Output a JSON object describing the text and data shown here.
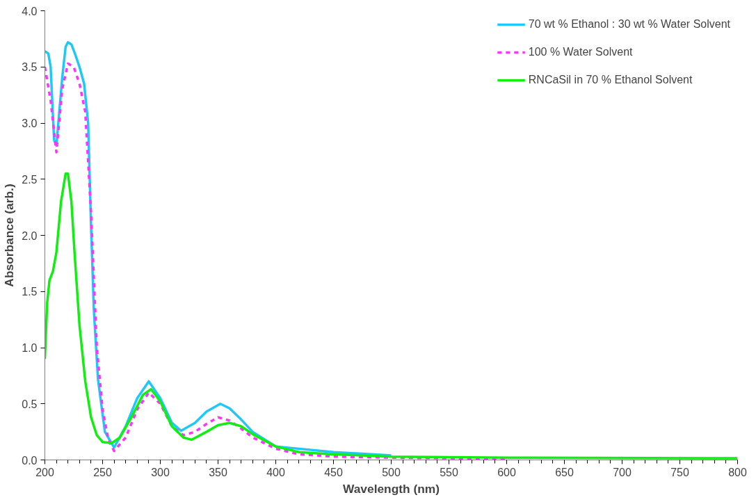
{
  "chart_data": {
    "type": "line",
    "xlabel": "Wavelength (nm)",
    "ylabel": "Absorbance (arb.)",
    "xlim": [
      200,
      800
    ],
    "ylim": [
      0,
      4
    ],
    "xticks": [
      200,
      250,
      300,
      350,
      400,
      450,
      500,
      550,
      600,
      650,
      700,
      750,
      800
    ],
    "yticks": [
      {
        "value": 0,
        "label": "0.0"
      },
      {
        "value": 0.5,
        "label": "0.5"
      },
      {
        "value": 1,
        "label": "1.0"
      },
      {
        "value": 1.5,
        "label": "1.5"
      },
      {
        "value": 2,
        "label": "2.0"
      },
      {
        "value": 2.5,
        "label": "2.5"
      },
      {
        "value": 3,
        "label": "3.0"
      },
      {
        "value": 3.5,
        "label": "3.5"
      },
      {
        "value": 4,
        "label": "4.0"
      }
    ],
    "grid": false,
    "legend": "top right",
    "marker": "none",
    "series": [
      {
        "name": "70 wt % Ethanol : 30 wt % Water Solvent",
        "color": "#1fc8f8",
        "line_style": "solid",
        "x": [
          200,
          203,
          205,
          208,
          210,
          215,
          218,
          220,
          223,
          226,
          230,
          234,
          237.5,
          240,
          242.4,
          246,
          252,
          260,
          270,
          280,
          290,
          300,
          310,
          318,
          330,
          340,
          352,
          360,
          370,
          380,
          400,
          450,
          500
        ],
        "values": [
          3.64,
          3.62,
          3.5,
          2.85,
          2.8,
          3.4,
          3.68,
          3.72,
          3.7,
          3.62,
          3.5,
          3.35,
          3.0,
          2.09,
          1.34,
          0.72,
          0.25,
          0.11,
          0.3,
          0.55,
          0.7,
          0.55,
          0.33,
          0.26,
          0.33,
          0.43,
          0.5,
          0.46,
          0.36,
          0.25,
          0.12,
          0.07,
          0.04
        ]
      },
      {
        "name": "100 % Water Solvent",
        "color": "#ff33ff",
        "line_style": "dashed",
        "x": [
          200,
          205,
          210,
          215,
          220,
          225,
          230,
          235,
          240,
          245,
          250,
          255,
          260,
          270,
          280,
          290,
          300,
          310,
          320,
          330,
          340,
          350,
          360,
          370,
          380,
          400,
          420,
          450,
          500,
          600
        ],
        "values": [
          3.5,
          3.2,
          2.74,
          3.3,
          3.53,
          3.5,
          3.35,
          3.1,
          2.2,
          1.0,
          0.45,
          0.18,
          0.08,
          0.2,
          0.45,
          0.6,
          0.5,
          0.3,
          0.22,
          0.25,
          0.32,
          0.38,
          0.35,
          0.28,
          0.2,
          0.1,
          0.05,
          0.03,
          0.02,
          0.01
        ]
      },
      {
        "name": "RNCaSil in 70 % Ethanol Solvent",
        "color": "#11ee11",
        "line_style": "solid",
        "x": [
          200,
          202,
          204,
          207,
          210,
          214,
          218,
          220,
          223,
          226,
          230,
          235,
          240,
          245,
          250,
          258,
          265,
          275,
          285,
          292,
          300,
          310,
          320,
          327,
          340,
          350,
          360,
          370,
          380,
          400,
          420,
          450,
          500,
          600,
          800
        ],
        "values": [
          0.9,
          1.4,
          1.6,
          1.68,
          1.85,
          2.3,
          2.55,
          2.55,
          2.3,
          1.8,
          1.2,
          0.7,
          0.38,
          0.22,
          0.16,
          0.15,
          0.2,
          0.38,
          0.58,
          0.63,
          0.52,
          0.3,
          0.2,
          0.18,
          0.25,
          0.31,
          0.33,
          0.3,
          0.23,
          0.12,
          0.07,
          0.05,
          0.03,
          0.02,
          0.015
        ]
      }
    ]
  }
}
